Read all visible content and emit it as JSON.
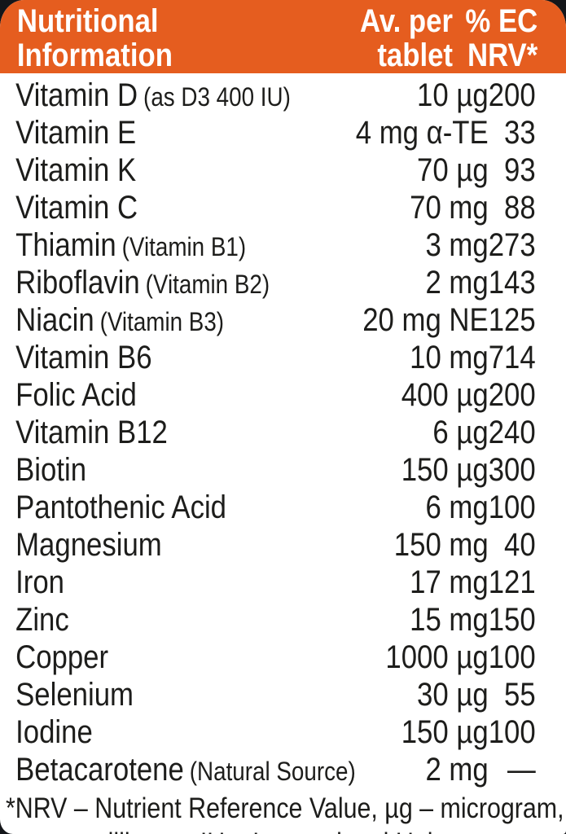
{
  "colors": {
    "header_bg": "#e55d1f",
    "header_text": "#ffffff",
    "body_text": "#1d1d1b",
    "card_bg": "#ffffff",
    "outer_bg": "#14161a"
  },
  "header": {
    "title_line1": "Nutritional",
    "title_line2": "Information",
    "amount_col_line1": "Av. per",
    "amount_col_line2": "tablet",
    "nrv_col_line1": "% EC",
    "nrv_col_line2": "NRV*"
  },
  "table": {
    "rows": [
      {
        "name": "Vitamin D",
        "note": "(as D3 400 IU)",
        "amount": "10 µg",
        "nrv": "200"
      },
      {
        "name": "Vitamin E",
        "note": "",
        "amount": "4 mg α-TE",
        "nrv": "33"
      },
      {
        "name": "Vitamin K",
        "note": "",
        "amount": "70 µg",
        "nrv": "93"
      },
      {
        "name": "Vitamin C",
        "note": "",
        "amount": "70 mg",
        "nrv": "88"
      },
      {
        "name": "Thiamin",
        "note": "(Vitamin B1)",
        "amount": "3 mg",
        "nrv": "273"
      },
      {
        "name": "Riboflavin",
        "note": "(Vitamin B2)",
        "amount": "2 mg",
        "nrv": "143"
      },
      {
        "name": "Niacin",
        "note": "(Vitamin B3)",
        "amount": "20 mg NE",
        "nrv": "125"
      },
      {
        "name": "Vitamin B6",
        "note": "",
        "amount": "10 mg",
        "nrv": "714"
      },
      {
        "name": "Folic Acid",
        "note": "",
        "amount": "400 µg",
        "nrv": "200"
      },
      {
        "name": "Vitamin B12",
        "note": "",
        "amount": "6 µg",
        "nrv": "240"
      },
      {
        "name": "Biotin",
        "note": "",
        "amount": "150 µg",
        "nrv": "300"
      },
      {
        "name": "Pantothenic Acid",
        "note": "",
        "amount": "6 mg",
        "nrv": "100"
      },
      {
        "name": "Magnesium",
        "note": "",
        "amount": "150 mg",
        "nrv": "40"
      },
      {
        "name": "Iron",
        "note": "",
        "amount": "17 mg",
        "nrv": "121"
      },
      {
        "name": "Zinc",
        "note": "",
        "amount": "15 mg",
        "nrv": "150"
      },
      {
        "name": "Copper",
        "note": "",
        "amount": "1000 µg",
        "nrv": "100"
      },
      {
        "name": "Selenium",
        "note": "",
        "amount": "30 µg",
        "nrv": "55"
      },
      {
        "name": "Iodine",
        "note": "",
        "amount": "150 µg",
        "nrv": "100"
      },
      {
        "name": "Betacarotene",
        "note": "(Natural Source)",
        "amount": "2 mg",
        "nrv": "—"
      }
    ]
  },
  "footnote": {
    "line1": "*NRV – Nutrient Reference Value, µg – microgram,",
    "line2": "mg – milligram, IU – International Units"
  }
}
